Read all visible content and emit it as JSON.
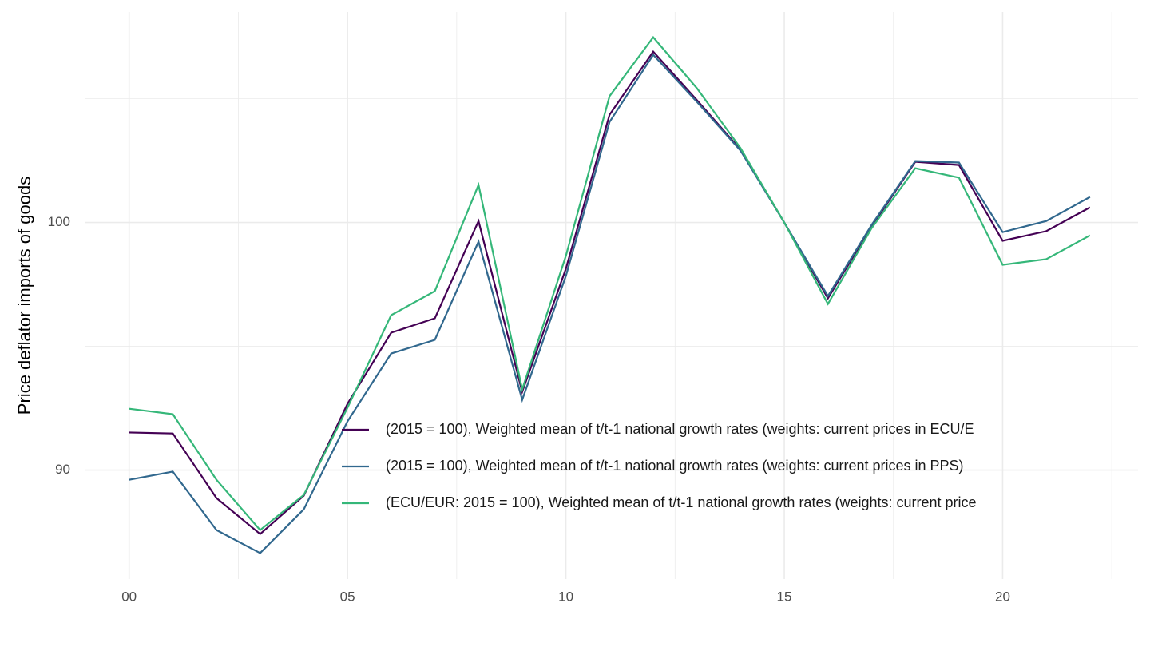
{
  "chart_data": {
    "type": "line",
    "y_label": "Price deflator imports of goods",
    "x": [
      0,
      1,
      2,
      3,
      4,
      5,
      6,
      7,
      8,
      9,
      10,
      11,
      12,
      13,
      14,
      15,
      16,
      17,
      18,
      19,
      20,
      21,
      22
    ],
    "xlim": [
      -1.0,
      23.1
    ],
    "xticks": [
      {
        "value": 0,
        "label": "00"
      },
      {
        "value": 5,
        "label": "05"
      },
      10,
      15,
      20
    ],
    "ylim": [
      85.6,
      108.5
    ],
    "yticks": [
      90,
      100
    ],
    "grid": true,
    "series": [
      {
        "name": "(2015 = 100), Weighted mean of t/t-1 national growth rates (weights: current prices in ECU/E",
        "color": "#440154",
        "values": [
          91.52,
          91.48,
          88.87,
          87.42,
          88.97,
          92.68,
          95.55,
          96.13,
          100.06,
          93.16,
          98.13,
          104.35,
          106.9,
          104.94,
          102.94,
          100,
          96.94,
          99.84,
          102.45,
          102.32,
          99.26,
          99.65,
          100.61
        ]
      },
      {
        "name": "(2015 = 100), Weighted mean of t/t-1 national growth rates (weights: current prices in PPS)",
        "color": "#31688e",
        "values": [
          89.61,
          89.94,
          87.58,
          86.65,
          88.42,
          91.97,
          94.71,
          95.26,
          99.23,
          92.84,
          97.84,
          104.06,
          106.77,
          104.87,
          102.9,
          100,
          97.03,
          99.9,
          102.48,
          102.42,
          99.61,
          100.06,
          101.03
        ]
      },
      {
        "name": "(ECU/EUR: 2015 = 100), Weighted mean of t/t-1 national growth rates (weights: current price",
        "color": "#35b779",
        "values": [
          92.48,
          92.26,
          89.61,
          87.58,
          89.0,
          92.52,
          96.26,
          97.23,
          101.52,
          93.26,
          98.65,
          105.1,
          107.48,
          105.42,
          103.0,
          100,
          96.71,
          99.77,
          102.19,
          101.81,
          98.29,
          98.52,
          99.48
        ]
      }
    ]
  }
}
